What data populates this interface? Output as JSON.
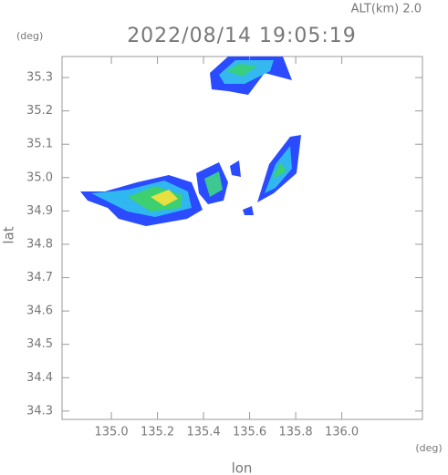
{
  "chart_data": {
    "type": "map",
    "title": "2022/08/14 19:05:19",
    "subtitle": "ALT(km) 2.0",
    "x_label": "lon",
    "y_label": "lat",
    "x_unit": "(deg)",
    "y_unit": "(deg)",
    "xlim": [
      134.786,
      136.35
    ],
    "ylim": [
      34.275,
      35.363
    ],
    "xticks": [
      {
        "value": 135,
        "label": "135.0"
      },
      135.2,
      135.4,
      135.6,
      135.8,
      {
        "value": 136,
        "label": "136.0"
      }
    ],
    "yticks": [
      34.3,
      34.4,
      34.5,
      34.6,
      34.7,
      34.8,
      34.9,
      {
        "value": 35,
        "label": "35.0"
      },
      35.1,
      35.2,
      35.3
    ]
  }
}
